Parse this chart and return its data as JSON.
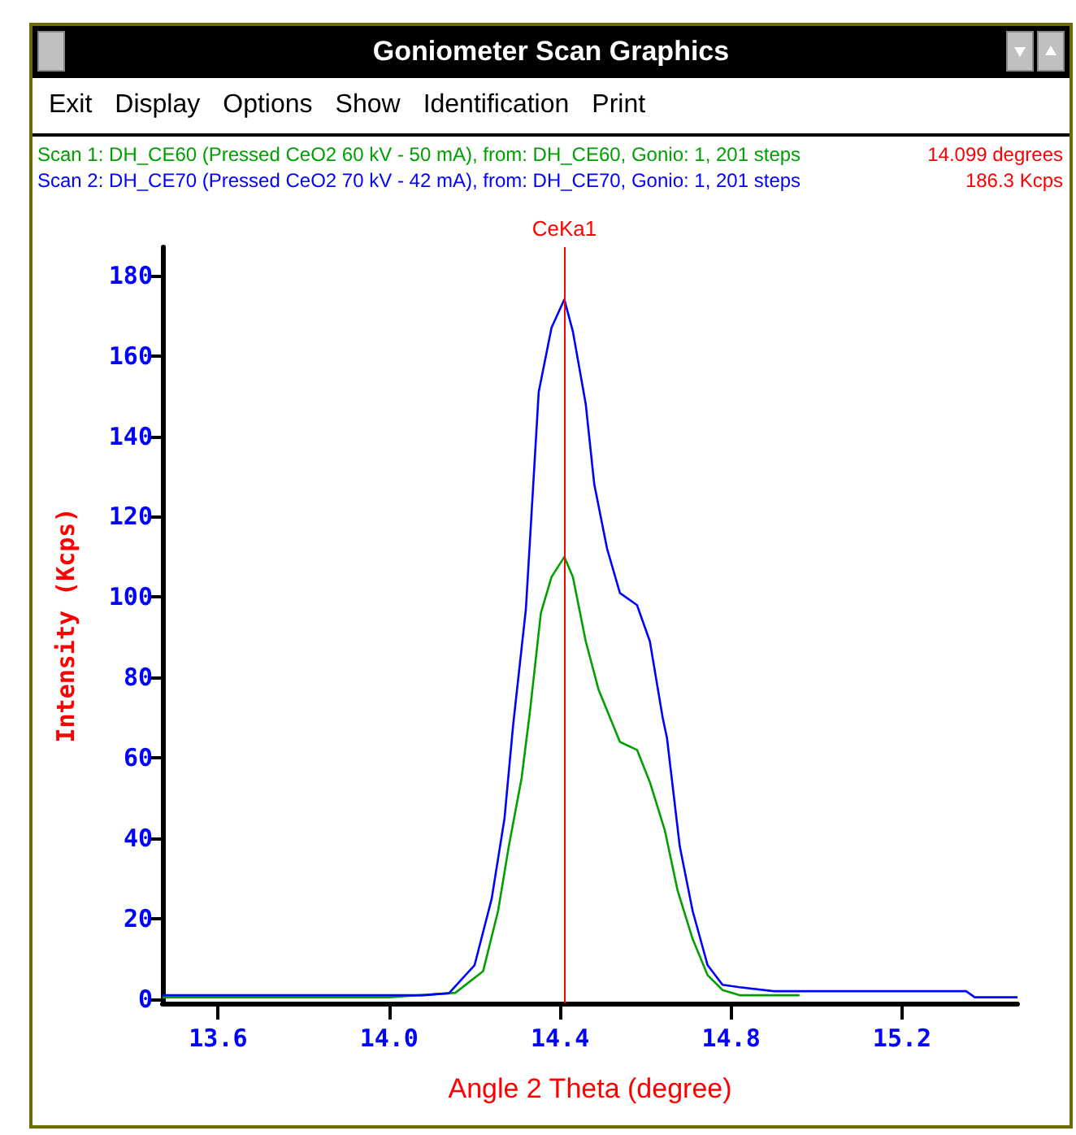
{
  "chart_data": {
    "type": "line",
    "title": "Goniometer Scan Graphics",
    "xlabel": "Angle 2 Theta (degree)",
    "ylabel": "Intensity (Kcps)",
    "annotations": [
      "Exit",
      "Display",
      "Options",
      "Show",
      "Identification",
      "Print",
      "14.099 degrees",
      "186.3 Kcps"
    ],
    "xlim": [
      13.47,
      15.47
    ],
    "ylim": [
      -1,
      187
    ],
    "xticks": [
      13.6,
      {
        "value": 14,
        "label": "14.0"
      },
      14.4,
      14.8,
      15.2
    ],
    "yticks": [
      0,
      20,
      40,
      60,
      80,
      100,
      120,
      140,
      160,
      180
    ],
    "grid": false,
    "marker": "none",
    "line_style": "solid",
    "ref_lines": [
      {
        "axis": "x",
        "value": 14.41,
        "label": "CeKa1",
        "color": "#ff0000"
      }
    ],
    "series": [
      {
        "name": "Scan 1: DH_CE60  (Pressed CeO2  60 kV - 50 mA), from: DH_CE60, Gonio: 1,  201  steps",
        "color": "#00a000",
        "x": [
          13.47,
          14.0,
          14.155,
          14.22,
          14.255,
          14.28,
          14.31,
          14.33,
          14.355,
          14.38,
          14.41,
          14.43,
          14.46,
          14.49,
          14.54,
          14.58,
          14.61,
          14.645,
          14.675,
          14.71,
          14.745,
          14.78,
          14.82,
          14.96
        ],
        "values": [
          0.5,
          0.5,
          1.6,
          7,
          22,
          38,
          55,
          72,
          96,
          105,
          110,
          105,
          89,
          77,
          64,
          62,
          54,
          42,
          27,
          15,
          6,
          2.3,
          1,
          1
        ]
      },
      {
        "name": "Scan 2: DH_CE70  (Pressed CeO2  70 kV - 42 mA), from: DH_CE70, Gonio: 1,  201  steps",
        "color": "#0000ff",
        "x": [
          13.47,
          14.08,
          14.14,
          14.2,
          14.24,
          14.27,
          14.29,
          14.32,
          14.35,
          14.38,
          14.41,
          14.43,
          14.46,
          14.48,
          14.51,
          14.54,
          14.58,
          14.61,
          14.64,
          14.65,
          14.68,
          14.71,
          14.745,
          14.78,
          14.82,
          14.9,
          15.35,
          15.37,
          15.47
        ],
        "values": [
          1,
          1,
          1.5,
          8.5,
          25,
          45,
          68,
          97,
          151,
          167,
          174,
          166,
          148,
          128,
          112,
          101,
          98,
          89,
          70,
          65,
          38,
          22,
          8.5,
          3.6,
          3,
          2,
          2,
          0.5,
          0.5
        ]
      }
    ]
  }
}
